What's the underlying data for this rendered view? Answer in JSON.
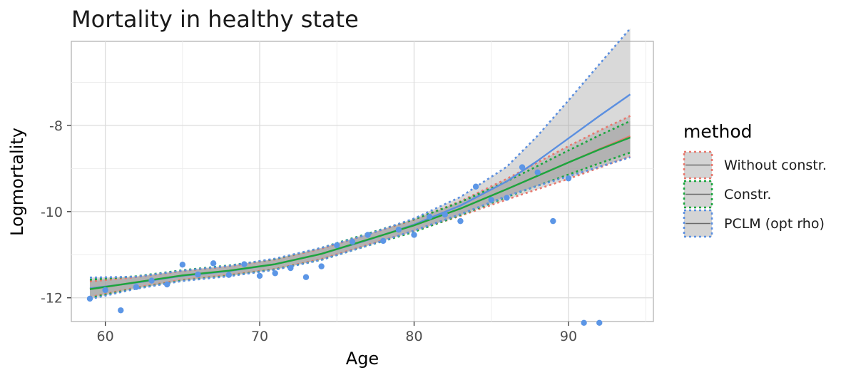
{
  "chart_data": {
    "type": "scatter",
    "title": "Mortality in healthy state",
    "xlabel": "Age",
    "ylabel": "Logmortality",
    "xlim": [
      57.8,
      95.5
    ],
    "ylim": [
      -12.55,
      -6.05
    ],
    "xticks": [
      60,
      70,
      80,
      90
    ],
    "yticks": [
      -12,
      -10,
      -8
    ],
    "xtick_labels": [
      "60",
      "70",
      "80",
      "90"
    ],
    "ytick_labels": [
      "-12",
      "-10",
      "-8"
    ],
    "grid": true,
    "legend": {
      "title": "method",
      "placement": "right",
      "entries": [
        "Without constr.",
        "Constr.",
        "PCLM (opt rho)"
      ]
    },
    "points": {
      "color": "#5c96e6",
      "x": [
        59,
        60,
        61,
        62,
        63,
        64,
        65,
        66,
        67,
        68,
        69,
        70,
        71,
        72,
        73,
        74,
        75,
        76,
        77,
        78,
        79,
        80,
        81,
        82,
        83,
        84,
        85,
        86,
        87,
        88,
        89,
        90,
        91,
        92
      ],
      "y": [
        -12.02,
        -11.82,
        -12.29,
        -11.75,
        -11.6,
        -11.69,
        -11.23,
        -11.46,
        -11.2,
        -11.47,
        -11.22,
        -11.49,
        -11.43,
        -11.31,
        -11.52,
        -11.27,
        -10.78,
        -10.7,
        -10.54,
        -10.68,
        -10.42,
        -10.54,
        -10.12,
        -10.07,
        -10.22,
        -9.42,
        -9.73,
        -9.68,
        -8.97,
        -9.09,
        -10.22,
        -9.23,
        -12.58,
        -12.58
      ]
    },
    "series": [
      {
        "name": "Without constr.",
        "color": "#e8786e",
        "x": [
          59,
          62,
          65,
          68,
          71,
          74,
          77,
          80,
          83,
          86,
          88,
          90,
          92,
          94
        ],
        "y": [
          -11.8,
          -11.64,
          -11.48,
          -11.37,
          -11.22,
          -10.98,
          -10.65,
          -10.32,
          -9.93,
          -9.48,
          -9.17,
          -8.86,
          -8.55,
          -8.25
        ],
        "lower": [
          -11.98,
          -11.76,
          -11.58,
          -11.47,
          -11.33,
          -11.1,
          -10.77,
          -10.45,
          -10.1,
          -9.72,
          -9.48,
          -9.24,
          -8.98,
          -8.72
        ],
        "upper": [
          -11.62,
          -11.52,
          -11.38,
          -11.27,
          -11.11,
          -10.86,
          -10.53,
          -10.19,
          -9.76,
          -9.24,
          -8.86,
          -8.48,
          -8.12,
          -7.78
        ]
      },
      {
        "name": "Constr.",
        "color": "#1aa63e",
        "x": [
          59,
          62,
          65,
          68,
          71,
          74,
          77,
          80,
          83,
          86,
          88,
          90,
          92,
          94
        ],
        "y": [
          -11.8,
          -11.64,
          -11.48,
          -11.37,
          -11.22,
          -10.98,
          -10.65,
          -10.32,
          -9.93,
          -9.48,
          -9.17,
          -8.86,
          -8.56,
          -8.28
        ],
        "lower": [
          -12.0,
          -11.78,
          -11.6,
          -11.49,
          -11.34,
          -11.12,
          -10.79,
          -10.47,
          -10.08,
          -9.66,
          -9.4,
          -9.14,
          -8.88,
          -8.63
        ],
        "upper": [
          -11.58,
          -11.5,
          -11.36,
          -11.25,
          -11.1,
          -10.84,
          -10.51,
          -10.18,
          -9.78,
          -9.3,
          -8.94,
          -8.58,
          -8.23,
          -7.9
        ]
      },
      {
        "name": "PCLM (opt rho)",
        "color": "#5b8fe0",
        "x": [
          59,
          62,
          65,
          68,
          71,
          74,
          77,
          80,
          83,
          86,
          88,
          90,
          92,
          94
        ],
        "y": [
          -11.78,
          -11.65,
          -11.49,
          -11.38,
          -11.22,
          -10.98,
          -10.66,
          -10.3,
          -9.86,
          -9.3,
          -8.82,
          -8.3,
          -7.78,
          -7.28
        ],
        "lower": [
          -12.03,
          -11.79,
          -11.61,
          -11.5,
          -11.35,
          -11.12,
          -10.79,
          -10.44,
          -10.06,
          -9.64,
          -9.4,
          -9.18,
          -8.96,
          -8.74
        ],
        "upper": [
          -11.53,
          -11.51,
          -11.37,
          -11.26,
          -11.09,
          -10.84,
          -10.53,
          -10.16,
          -9.66,
          -8.96,
          -8.24,
          -7.42,
          -6.58,
          -5.75
        ]
      }
    ]
  }
}
